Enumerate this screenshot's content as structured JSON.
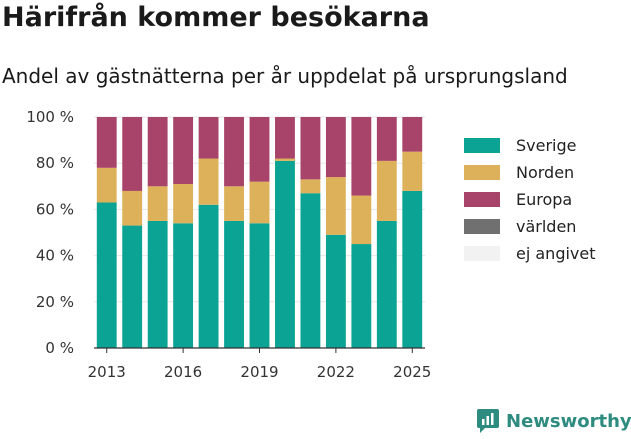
{
  "header": {
    "title": "Härifrån kommer besökarna",
    "subtitle": "Andel av gästnätterna per år uppdelat på ursprungsland"
  },
  "brand": {
    "name": "Newsworthy",
    "icon": "newsworthy-logo-icon",
    "color": "#2e8b80"
  },
  "chart_data": {
    "type": "bar",
    "stacked": true,
    "categories": [
      "2013",
      "2014",
      "2015",
      "2016",
      "2017",
      "2018",
      "2019",
      "2020",
      "2021",
      "2022",
      "2023",
      "2024",
      "2025"
    ],
    "x_tick_labels": [
      "2013",
      "2016",
      "2019",
      "2022",
      "2025"
    ],
    "y_tick_labels": [
      "0 %",
      "20 %",
      "40 %",
      "60 %",
      "80 %",
      "100 %"
    ],
    "ylim": [
      0,
      100
    ],
    "grid": true,
    "legend_position": "right",
    "series": [
      {
        "name": "Sverige",
        "color": "#0aa394",
        "values": [
          63,
          53,
          55,
          54,
          62,
          55,
          54,
          81,
          67,
          49,
          45,
          55,
          68
        ]
      },
      {
        "name": "Norden",
        "color": "#ddb15a",
        "values": [
          15,
          15,
          15,
          17,
          20,
          15,
          18,
          1,
          6,
          25,
          21,
          26,
          17
        ]
      },
      {
        "name": "Europa",
        "color": "#a8436a",
        "values": [
          22,
          32,
          30,
          29,
          18,
          30,
          28,
          18,
          27,
          26,
          34,
          19,
          15
        ]
      },
      {
        "name": "världen",
        "color": "#707070",
        "values": [
          0,
          0,
          0,
          0,
          0,
          0,
          0,
          0,
          0,
          0,
          0,
          0,
          0
        ]
      },
      {
        "name": "ej angivet",
        "color": "#f2f2f2",
        "values": [
          0,
          0,
          0,
          0,
          0,
          0,
          0,
          0,
          0,
          0,
          0,
          0,
          0
        ]
      }
    ]
  }
}
